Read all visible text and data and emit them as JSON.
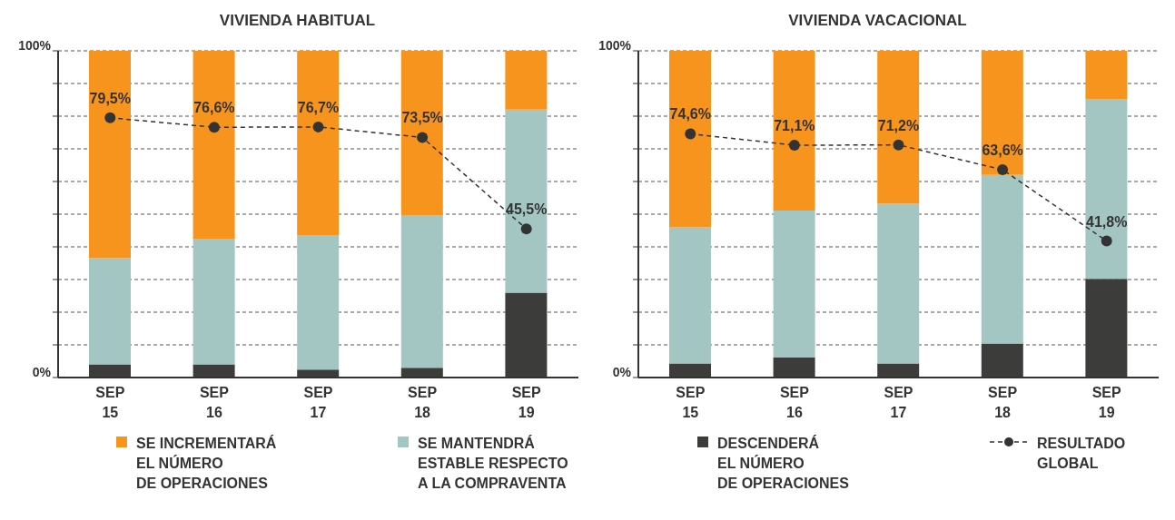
{
  "chart_data": [
    {
      "type": "bar",
      "title": "VIVIENDA HABITUAL",
      "stacked": true,
      "categories": [
        "SEP 15",
        "SEP 16",
        "SEP 17",
        "SEP 18",
        "SEP 19"
      ],
      "series": [
        {
          "name": "DESCENDERÁ\nEL NÚMERO\nDE OPERACIONES",
          "color": "#3c3c3b",
          "values": [
            4,
            4,
            2.4,
            3,
            26
          ]
        },
        {
          "name": "SE MANTENDRÁ\nESTABLE RESPECTO\nA LA COMPRAVENTA",
          "color": "#a3c6c2",
          "values": [
            32.5,
            38.5,
            41.2,
            46.7,
            56
          ]
        },
        {
          "name": "SE INCREMENTARÁ\nEL NÚMERO\nDE OPERACIONES",
          "color": "#f7941d",
          "values": [
            63.5,
            57.5,
            56.4,
            50.3,
            18
          ]
        },
        {
          "name": "RESULTADO\nGLOBAL",
          "type": "line",
          "color": "#333333",
          "marker": "circle",
          "line_style": "dashed",
          "values": [
            79.5,
            76.6,
            76.7,
            73.5,
            45.5
          ],
          "value_labels": [
            "79,5%",
            "76,6%",
            "76,7%",
            "73,5%",
            "45,5%"
          ]
        }
      ],
      "ylim": [
        0,
        100
      ],
      "yticks": [
        {
          "value": 0,
          "label": "0%"
        },
        {
          "value": 10,
          "label": null
        },
        {
          "value": 20,
          "label": null
        },
        {
          "value": 30,
          "label": null
        },
        {
          "value": 40,
          "label": null
        },
        {
          "value": 50,
          "label": null
        },
        {
          "value": 60,
          "label": null
        },
        {
          "value": 70,
          "label": null
        },
        {
          "value": 80,
          "label": null
        },
        {
          "value": 90,
          "label": null
        },
        {
          "value": 100,
          "label": "100%"
        }
      ],
      "grid": "y",
      "legend": "bottom"
    },
    {
      "type": "bar",
      "title": "VIVIENDA VACACIONAL",
      "stacked": true,
      "categories": [
        "SEP 15",
        "SEP 16",
        "SEP 17",
        "SEP 18",
        "SEP 19"
      ],
      "series": [
        {
          "color": "#3c3c3b",
          "values": [
            4.3,
            6.1,
            4.3,
            10.4,
            30.2
          ]
        },
        {
          "color": "#a3c6c2",
          "values": [
            41.7,
            45,
            48.9,
            51.6,
            55.1
          ]
        },
        {
          "color": "#f7941d",
          "values": [
            54,
            48.9,
            46.8,
            38,
            14.7
          ]
        },
        {
          "type": "line",
          "color": "#333333",
          "marker": "circle",
          "line_style": "dashed",
          "values": [
            74.6,
            71.1,
            71.2,
            63.6,
            41.8
          ],
          "value_labels": [
            "74,6%",
            "71,1%",
            "71,2%",
            "63,6%",
            "41,8%"
          ]
        }
      ],
      "ylim": [
        0,
        100
      ],
      "yticks": [
        {
          "value": 0,
          "label": "0%"
        },
        {
          "value": 10,
          "label": null
        },
        {
          "value": 20,
          "label": null
        },
        {
          "value": 30,
          "label": null
        },
        {
          "value": 40,
          "label": null
        },
        {
          "value": 50,
          "label": null
        },
        {
          "value": 60,
          "label": null
        },
        {
          "value": 70,
          "label": null
        },
        {
          "value": 80,
          "label": null
        },
        {
          "value": 90,
          "label": null
        },
        {
          "value": 100,
          "label": "100%"
        }
      ],
      "grid": "y"
    }
  ]
}
